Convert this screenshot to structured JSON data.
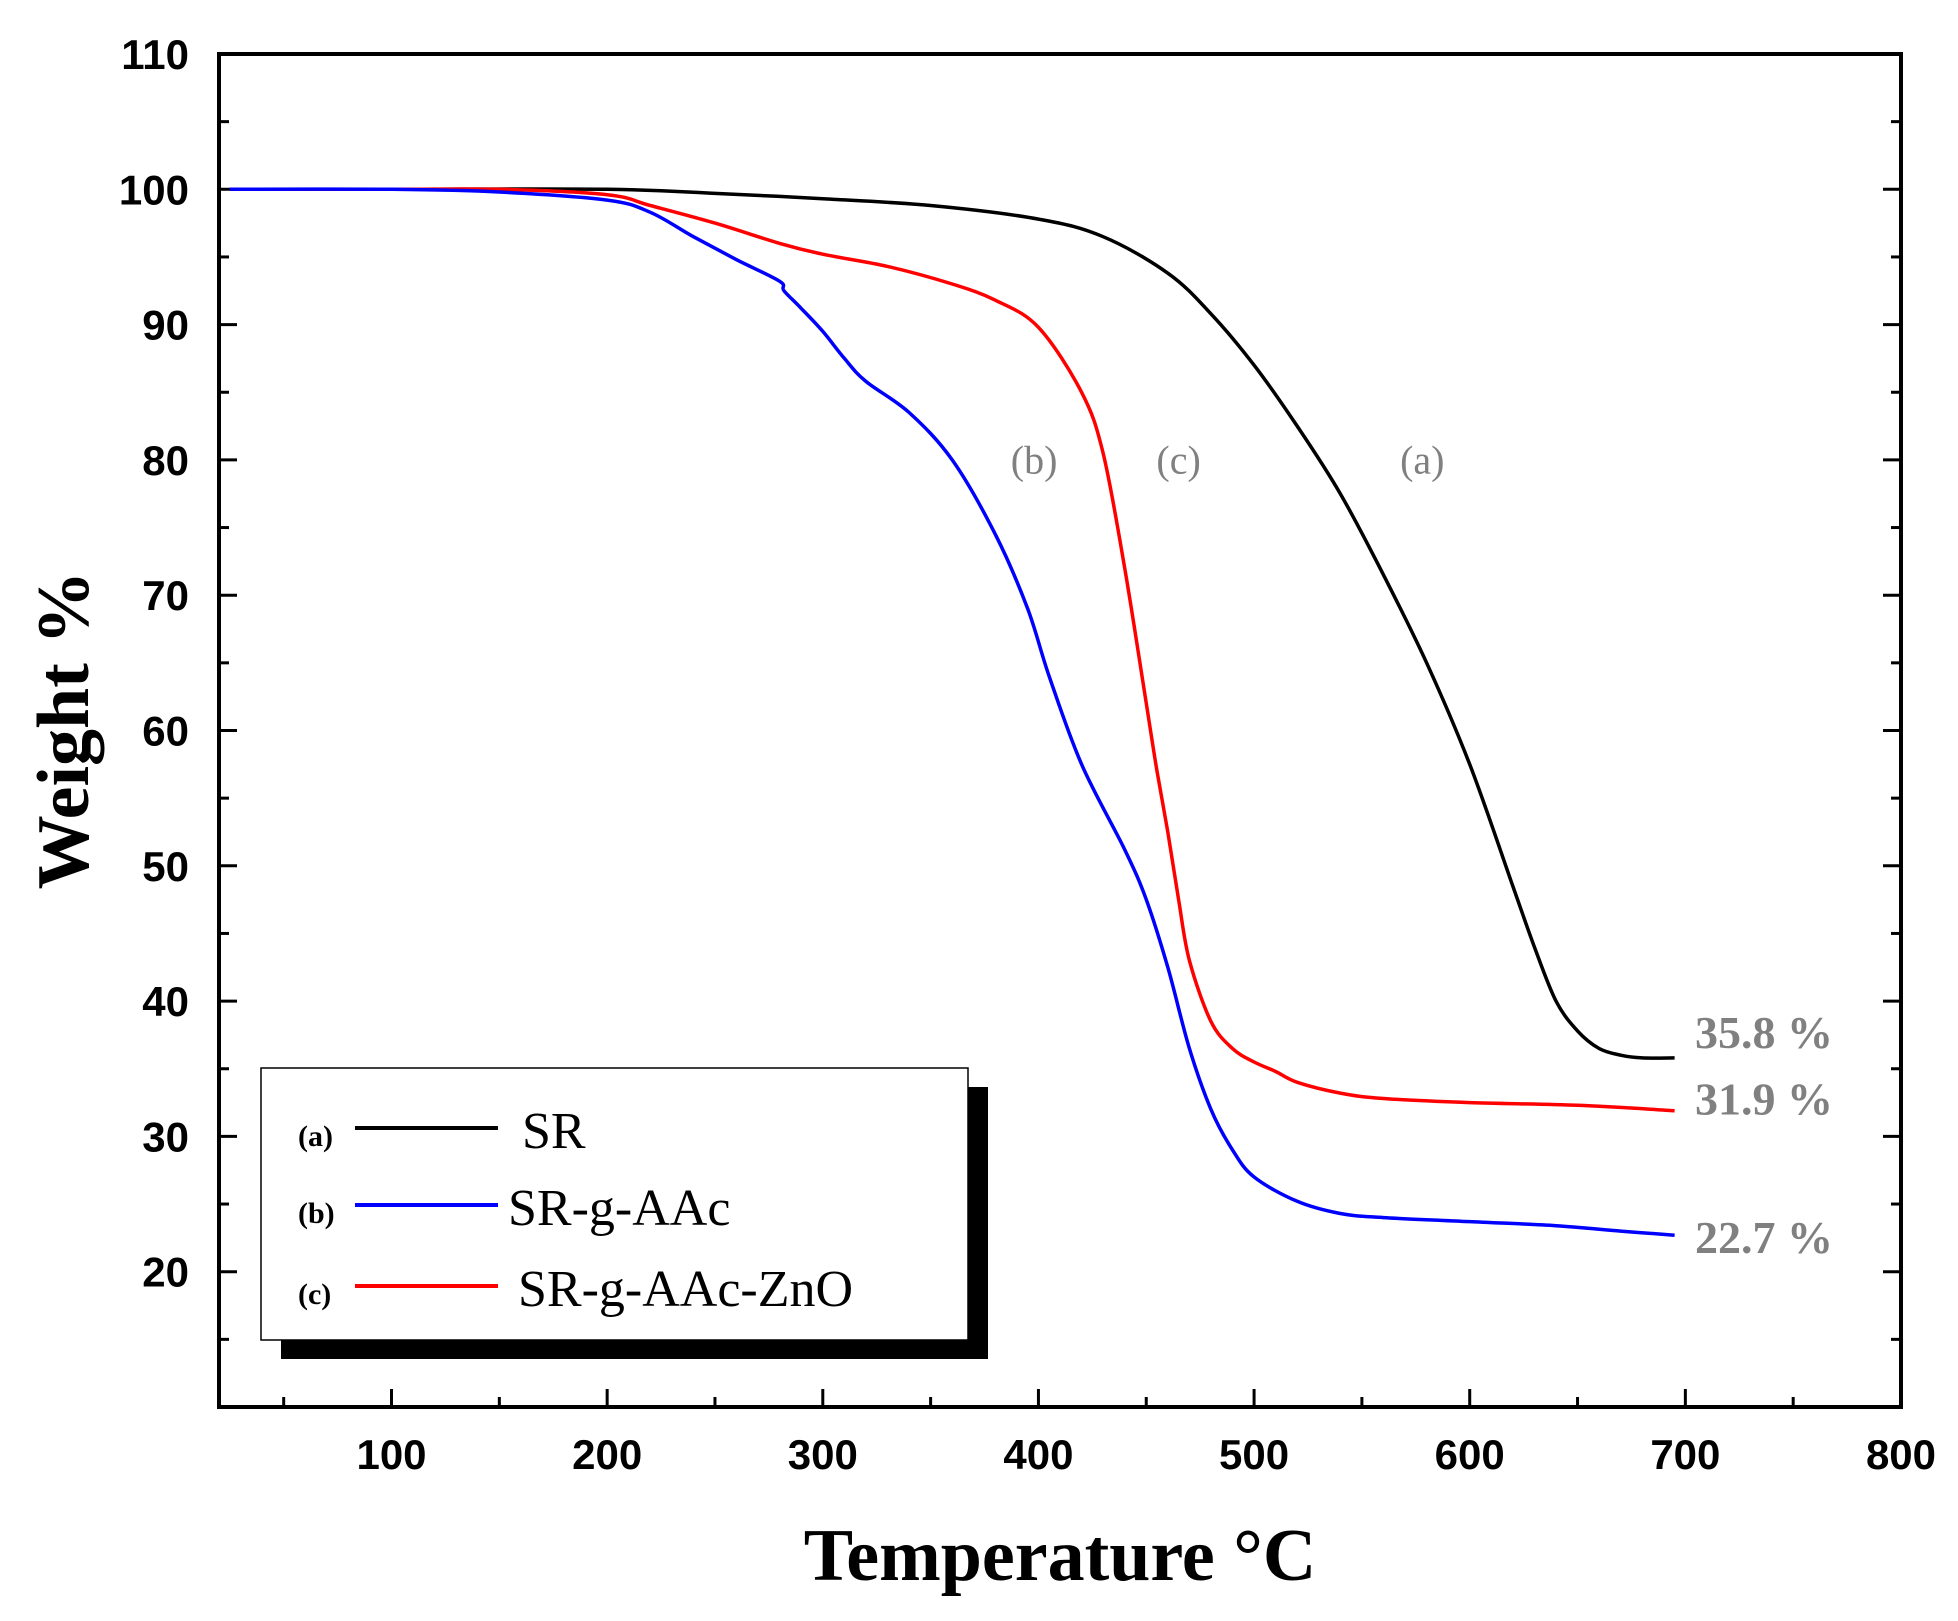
{
  "chart_data": {
    "type": "line",
    "title": "",
    "xlabel": "Temperature °C",
    "ylabel": "Weight %",
    "xlim": [
      20,
      800
    ],
    "ylim": [
      10,
      110
    ],
    "x_ticks": [
      100,
      200,
      300,
      400,
      500,
      600,
      700,
      800
    ],
    "y_ticks": [
      20,
      30,
      40,
      50,
      60,
      70,
      80,
      90,
      100,
      110
    ],
    "grid": false,
    "legend_position": "bottom-left",
    "series": [
      {
        "tag": "(a)",
        "name": "SR",
        "color": "#000000",
        "end_label": "35.8 %",
        "x": [
          25,
          100,
          200,
          250,
          300,
          350,
          400,
          430,
          460,
          480,
          500,
          520,
          540,
          560,
          580,
          600,
          620,
          630,
          640,
          650,
          660,
          670,
          680,
          695
        ],
        "y": [
          100,
          100,
          100,
          99.7,
          99.3,
          98.8,
          97.8,
          96.5,
          93.8,
          90.8,
          87,
          82.5,
          77.5,
          71.5,
          65,
          57.5,
          48.5,
          44,
          40,
          37.8,
          36.5,
          36,
          35.8,
          35.8
        ]
      },
      {
        "tag": "(b)",
        "name": "SR-g-AAc",
        "color": "#0000ff",
        "end_label": "22.7 %",
        "x": [
          25,
          100,
          150,
          200,
          220,
          240,
          260,
          280,
          282,
          290,
          300,
          310,
          320,
          340,
          360,
          380,
          395,
          405,
          420,
          440,
          450,
          460,
          470,
          480,
          490,
          500,
          520,
          540,
          560,
          600,
          640,
          670,
          695
        ],
        "y": [
          100,
          100,
          99.8,
          99.2,
          98.3,
          96.5,
          94.8,
          93.2,
          92.5,
          91.2,
          89.5,
          87.5,
          85.8,
          83.5,
          80,
          74.5,
          69,
          64,
          57.5,
          51.2,
          47.5,
          42.5,
          36.5,
          32,
          29,
          27,
          25.2,
          24.3,
          24,
          23.7,
          23.4,
          23,
          22.7
        ]
      },
      {
        "tag": "(c)",
        "name": "SR-g-AAc-ZnO",
        "color": "#ff0000",
        "end_label": "31.9 %",
        "x": [
          25,
          100,
          150,
          200,
          220,
          250,
          280,
          300,
          330,
          360,
          380,
          400,
          420,
          430,
          440,
          450,
          455,
          460,
          465,
          470,
          480,
          490,
          500,
          510,
          520,
          540,
          560,
          600,
          650,
          695
        ],
        "y": [
          100,
          100,
          100,
          99.6,
          98.8,
          97.5,
          96,
          95.2,
          94.3,
          93,
          91.8,
          89.8,
          85,
          80.5,
          72,
          62,
          57,
          52.5,
          47.5,
          43,
          38.5,
          36.5,
          35.5,
          34.8,
          34,
          33.2,
          32.8,
          32.5,
          32.3,
          31.9
        ]
      }
    ],
    "annotations": [
      {
        "text": "(a)",
        "x": 578,
        "y": 79
      },
      {
        "text": "(b)",
        "x": 398,
        "y": 79
      },
      {
        "text": "(c)",
        "x": 465,
        "y": 79
      }
    ]
  }
}
